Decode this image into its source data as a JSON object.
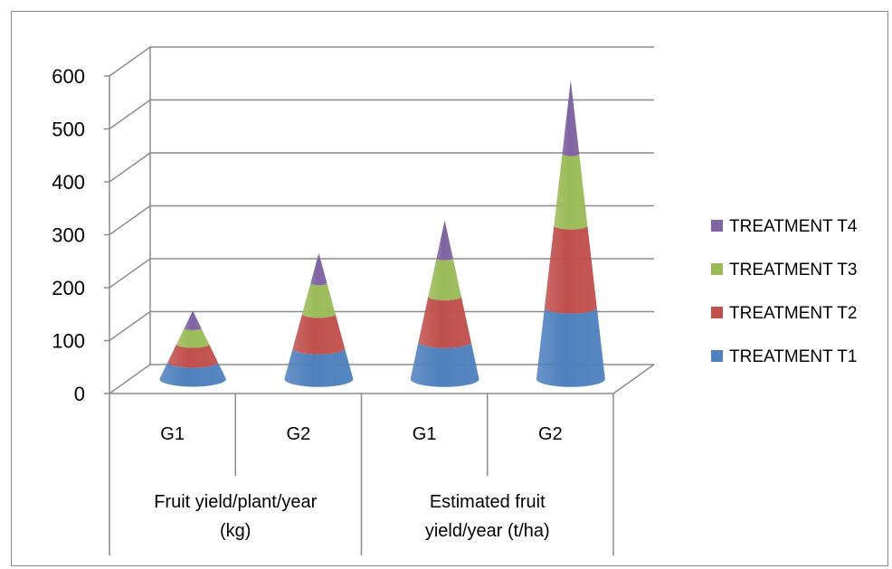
{
  "chart_data": {
    "type": "bar",
    "style": "3d-stacked-cone",
    "categories": [
      "G1",
      "G2",
      "G1",
      "G2"
    ],
    "groups": [
      {
        "label": "Fruit yield/plant/year (kg)",
        "label_lines": [
          "Fruit yield/plant/year",
          "(kg)"
        ],
        "categories": [
          "G1",
          "G2"
        ]
      },
      {
        "label": "Estimated fruit yield/year (t/ha)",
        "label_lines": [
          "Estimated fruit",
          "yield/year (t/ha)"
        ],
        "categories": [
          "G1",
          "G2"
        ]
      }
    ],
    "series": [
      {
        "name": "TREATMENT T1",
        "color": "#4F81BD",
        "values": [
          32,
          58,
          70,
          135
        ]
      },
      {
        "name": "TREATMENT T2",
        "color": "#C0504D",
        "values": [
          34,
          65,
          86,
          155
        ]
      },
      {
        "name": "TREATMENT T3",
        "color": "#9BBB59",
        "values": [
          30,
          58,
          72,
          135
        ]
      },
      {
        "name": "TREATMENT T4",
        "color": "#8064A2",
        "values": [
          33,
          57,
          72,
          140
        ]
      }
    ],
    "y_ticks": [
      0,
      100,
      200,
      300,
      400,
      500,
      600
    ],
    "ylim": [
      0,
      600
    ],
    "grid": true,
    "legend_position": "right",
    "legend_order": [
      "TREATMENT T4",
      "TREATMENT T3",
      "TREATMENT T2",
      "TREATMENT T1"
    ]
  }
}
